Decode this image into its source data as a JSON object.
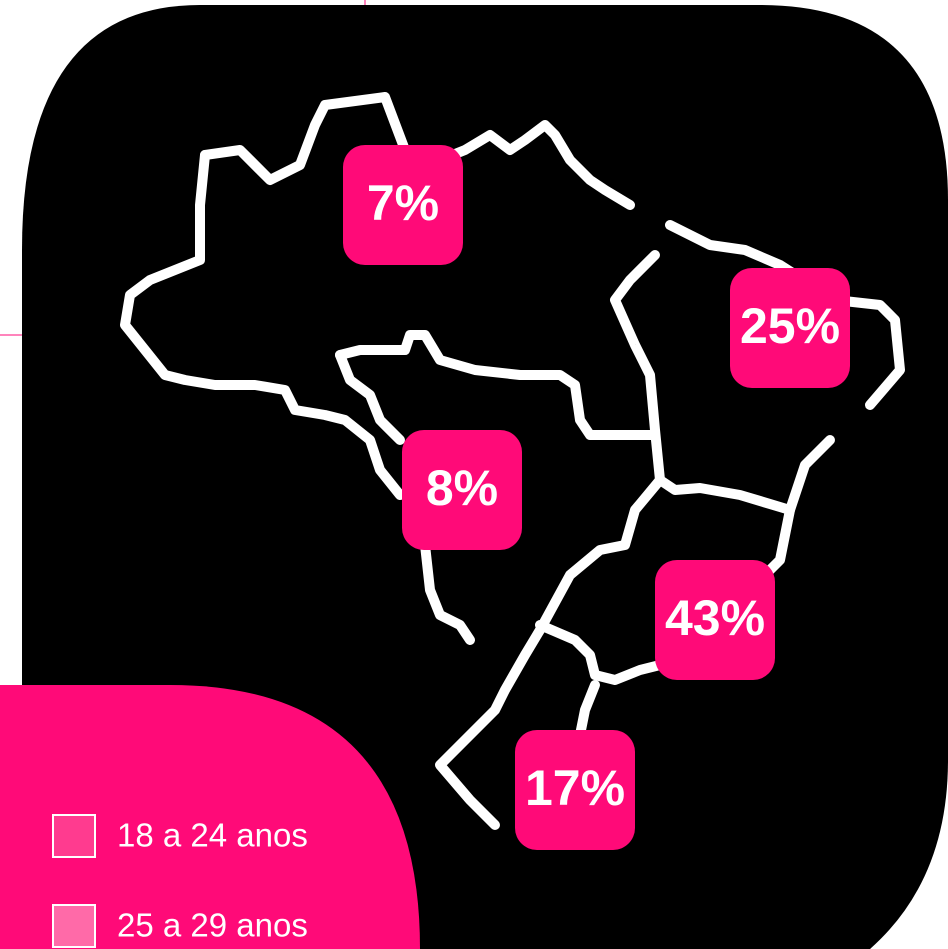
{
  "regions": [
    {
      "value": 7,
      "label": "7%"
    },
    {
      "value": 25,
      "label": "25%"
    },
    {
      "value": 8,
      "label": "8%"
    },
    {
      "value": 43,
      "label": "43%"
    },
    {
      "value": 17,
      "label": "17%"
    }
  ],
  "legend": [
    {
      "label": "18 a 24 anos",
      "color": "#ff3b8f"
    },
    {
      "label": "25 a 29 anos",
      "color": "#ff6aa8"
    }
  ]
}
